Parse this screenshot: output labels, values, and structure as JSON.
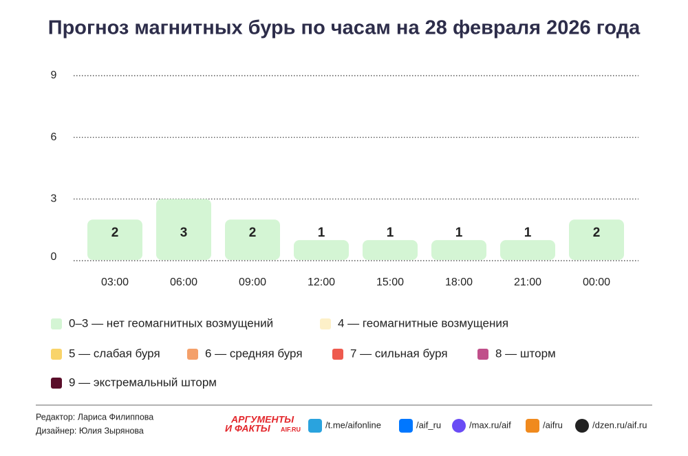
{
  "chart_data": {
    "type": "bar",
    "title": "Прогноз магнитных бурь по часам на 28 февраля 2026 года",
    "categories": [
      "03:00",
      "06:00",
      "09:00",
      "12:00",
      "15:00",
      "18:00",
      "21:00",
      "00:00"
    ],
    "values": [
      2,
      3,
      2,
      1,
      1,
      1,
      1,
      2
    ],
    "color": "#d4f5d4",
    "ylim": [
      0,
      9
    ],
    "yticks": [
      0,
      3,
      6,
      9
    ],
    "grid": true,
    "legend": [
      {
        "label": "0–3 — нет геомагнитных возмущений",
        "color": "#d4f5d4"
      },
      {
        "label": "4 — геомагнитные возмущения",
        "color": "#fdf0c8"
      },
      {
        "label": "5 — слабая буря",
        "color": "#f9d46a"
      },
      {
        "label": "6 — средняя буря",
        "color": "#f4a06a"
      },
      {
        "label": "7 — сильная буря",
        "color": "#ee5a4e"
      },
      {
        "label": "8 — шторм",
        "color": "#c04f8a"
      },
      {
        "label": "9 — экстремальный шторм",
        "color": "#5a0e2a"
      }
    ]
  },
  "footer": {
    "editor": "Редактор: Лариса Филиппова",
    "designer": "Дизайнер: Юлия Зырянова",
    "logo": [
      "АРГУМЕНТЫ",
      "И ФАКТЫ",
      "AIF.RU"
    ],
    "socials": [
      "/t.me/aifonline",
      "/aif_ru",
      "/max.ru/aif",
      "/aifru",
      "/dzen.ru/aif.ru"
    ]
  }
}
